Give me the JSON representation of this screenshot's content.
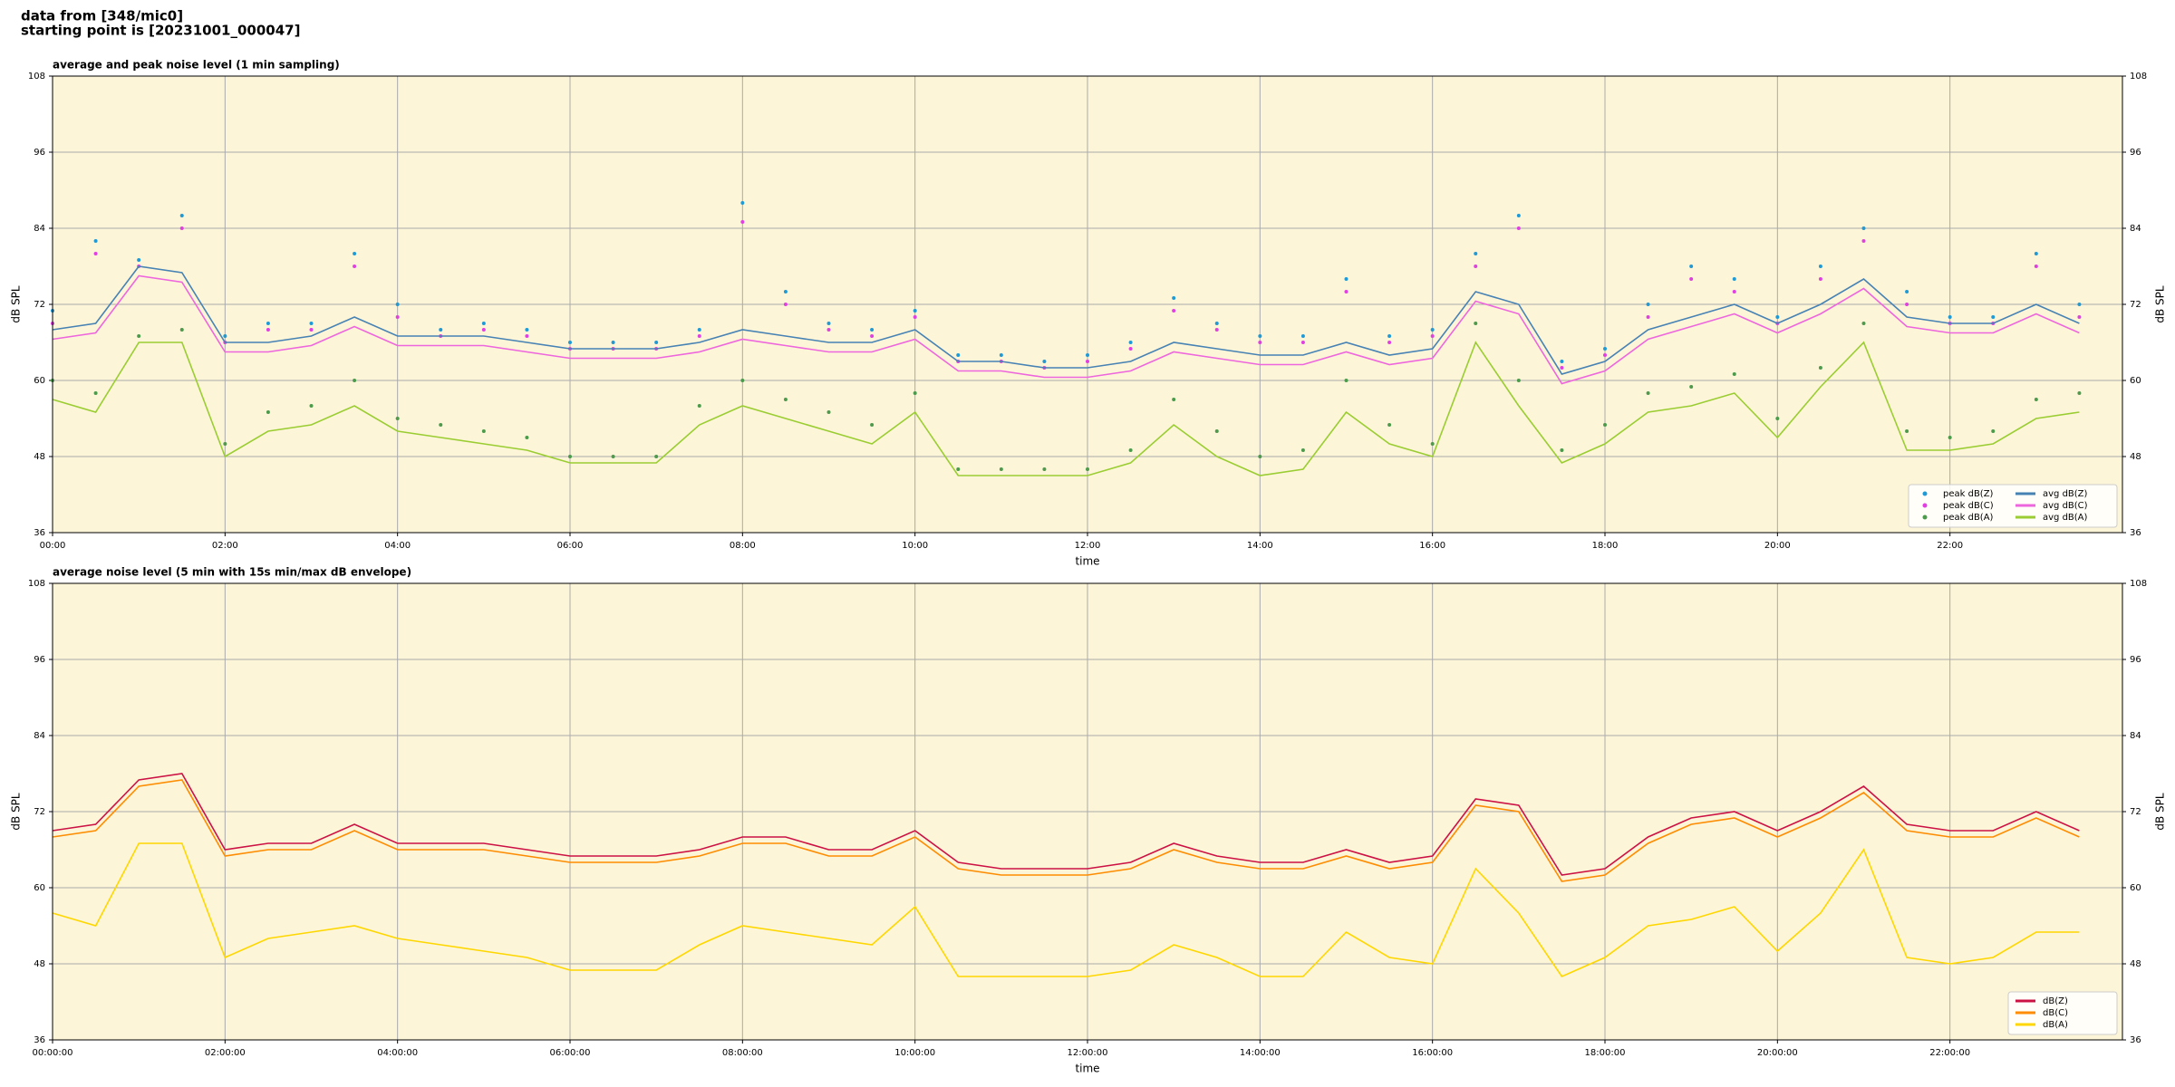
{
  "header": {
    "line1": "data from [348/mic0]",
    "line2": "starting point is [20231001_000047]"
  },
  "chart_data": [
    {
      "type": "line",
      "title": "average and peak noise level (1 min sampling)",
      "x_label": "time",
      "y_label": "dB SPL",
      "x": [
        0,
        0.5,
        1,
        1.5,
        2,
        2.5,
        3,
        3.5,
        4,
        4.5,
        5,
        5.5,
        6,
        6.5,
        7,
        7.5,
        8,
        8.5,
        9,
        9.5,
        10,
        10.5,
        11,
        11.5,
        12,
        12.5,
        13,
        13.5,
        14,
        14.5,
        15,
        15.5,
        16,
        16.5,
        17,
        17.5,
        18,
        18.5,
        19,
        19.5,
        20,
        20.5,
        21,
        21.5,
        22,
        22.5,
        23,
        23.5
      ],
      "xlim": [
        0,
        24
      ],
      "xticks": [
        {
          "value": 0,
          "label": "00:00"
        },
        {
          "value": 2,
          "label": "02:00"
        },
        {
          "value": 4,
          "label": "04:00"
        },
        {
          "value": 6,
          "label": "06:00"
        },
        {
          "value": 8,
          "label": "08:00"
        },
        {
          "value": 10,
          "label": "10:00"
        },
        {
          "value": 12,
          "label": "12:00"
        },
        {
          "value": 14,
          "label": "14:00"
        },
        {
          "value": 16,
          "label": "16:00"
        },
        {
          "value": 18,
          "label": "18:00"
        },
        {
          "value": 20,
          "label": "20:00"
        },
        {
          "value": 22,
          "label": "22:00"
        }
      ],
      "ylim": [
        36,
        108
      ],
      "yticks": [
        36,
        48,
        60,
        72,
        84,
        96,
        108
      ],
      "grid": true,
      "legend": "lower right",
      "legend_columns": 2,
      "series": [
        {
          "name": "peak dB(Z)",
          "style": "scatter",
          "color": "#1f9ad6",
          "values": [
            71,
            82,
            79,
            86,
            67,
            69,
            69,
            80,
            72,
            68,
            69,
            68,
            66,
            66,
            66,
            68,
            88,
            74,
            69,
            68,
            71,
            64,
            64,
            63,
            64,
            66,
            73,
            69,
            67,
            67,
            76,
            67,
            68,
            80,
            86,
            63,
            65,
            72,
            78,
            76,
            70,
            78,
            84,
            74,
            70,
            70,
            80,
            72
          ]
        },
        {
          "name": "peak dB(C)",
          "style": "scatter",
          "color": "#e040e0",
          "values": [
            69,
            80,
            78,
            84,
            66,
            68,
            68,
            78,
            70,
            67,
            68,
            67,
            65,
            65,
            65,
            67,
            85,
            72,
            68,
            67,
            70,
            63,
            63,
            62,
            63,
            65,
            71,
            68,
            66,
            66,
            74,
            66,
            67,
            78,
            84,
            62,
            64,
            70,
            76,
            74,
            69,
            76,
            82,
            72,
            69,
            69,
            78,
            70
          ]
        },
        {
          "name": "peak dB(A)",
          "style": "scatter",
          "color": "#4c9a4c",
          "values": [
            60,
            58,
            67,
            68,
            50,
            55,
            56,
            60,
            54,
            53,
            52,
            51,
            48,
            48,
            48,
            56,
            60,
            57,
            55,
            53,
            58,
            46,
            46,
            46,
            46,
            49,
            57,
            52,
            48,
            49,
            60,
            53,
            50,
            69,
            60,
            49,
            53,
            58,
            59,
            61,
            54,
            62,
            69,
            52,
            51,
            52,
            57,
            58
          ]
        },
        {
          "name": "avg dB(Z)",
          "style": "line",
          "color": "#4682b4",
          "values": [
            68,
            69,
            78,
            77,
            66,
            66,
            67,
            70,
            67,
            67,
            67,
            66,
            65,
            65,
            65,
            66,
            68,
            67,
            66,
            66,
            68,
            63,
            63,
            62,
            62,
            63,
            66,
            65,
            64,
            64,
            66,
            64,
            65,
            74,
            72,
            61,
            63,
            68,
            70,
            72,
            69,
            72,
            76,
            70,
            69,
            69,
            72,
            69
          ]
        },
        {
          "name": "avg dB(C)",
          "style": "line",
          "color": "#ee66dd",
          "values": [
            66.5,
            67.5,
            76.5,
            75.5,
            64.5,
            64.5,
            65.5,
            68.5,
            65.5,
            65.5,
            65.5,
            64.5,
            63.5,
            63.5,
            63.5,
            64.5,
            66.5,
            65.5,
            64.5,
            64.5,
            66.5,
            61.5,
            61.5,
            60.5,
            60.5,
            61.5,
            64.5,
            63.5,
            62.5,
            62.5,
            64.5,
            62.5,
            63.5,
            72.5,
            70.5,
            59.5,
            61.5,
            66.5,
            68.5,
            70.5,
            67.5,
            70.5,
            74.5,
            68.5,
            67.5,
            67.5,
            70.5,
            67.5
          ]
        },
        {
          "name": "avg dB(A)",
          "style": "line",
          "color": "#9acd32",
          "values": [
            57,
            55,
            66,
            66,
            48,
            52,
            53,
            56,
            52,
            51,
            50,
            49,
            47,
            47,
            47,
            53,
            56,
            54,
            52,
            50,
            55,
            45,
            45,
            45,
            45,
            47,
            53,
            48,
            45,
            46,
            55,
            50,
            48,
            66,
            56,
            47,
            50,
            55,
            56,
            58,
            51,
            59,
            66,
            49,
            49,
            50,
            54,
            55
          ]
        }
      ]
    },
    {
      "type": "line",
      "title": "average noise level (5 min with 15s min/max dB envelope)",
      "x_label": "time",
      "y_label": "dB SPL",
      "x": [
        0,
        0.5,
        1,
        1.5,
        2,
        2.5,
        3,
        3.5,
        4,
        4.5,
        5,
        5.5,
        6,
        6.5,
        7,
        7.5,
        8,
        8.5,
        9,
        9.5,
        10,
        10.5,
        11,
        11.5,
        12,
        12.5,
        13,
        13.5,
        14,
        14.5,
        15,
        15.5,
        16,
        16.5,
        17,
        17.5,
        18,
        18.5,
        19,
        19.5,
        20,
        20.5,
        21,
        21.5,
        22,
        22.5,
        23,
        23.5
      ],
      "xlim": [
        0,
        24
      ],
      "xticks": [
        {
          "value": 0,
          "label": "00:00:00"
        },
        {
          "value": 2,
          "label": "02:00:00"
        },
        {
          "value": 4,
          "label": "04:00:00"
        },
        {
          "value": 6,
          "label": "06:00:00"
        },
        {
          "value": 8,
          "label": "08:00:00"
        },
        {
          "value": 10,
          "label": "10:00:00"
        },
        {
          "value": 12,
          "label": "12:00:00"
        },
        {
          "value": 14,
          "label": "14:00:00"
        },
        {
          "value": 16,
          "label": "16:00:00"
        },
        {
          "value": 18,
          "label": "18:00:00"
        },
        {
          "value": 20,
          "label": "20:00:00"
        },
        {
          "value": 22,
          "label": "22:00:00"
        }
      ],
      "ylim": [
        36,
        108
      ],
      "yticks": [
        36,
        48,
        60,
        72,
        84,
        96,
        108
      ],
      "grid": true,
      "legend": "lower right",
      "legend_columns": 1,
      "series": [
        {
          "name": "dB(Z)",
          "style": "line",
          "color": "#cc1144",
          "values": [
            69,
            70,
            77,
            78,
            66,
            67,
            67,
            70,
            67,
            67,
            67,
            66,
            65,
            65,
            65,
            66,
            68,
            68,
            66,
            66,
            69,
            64,
            63,
            63,
            63,
            64,
            67,
            65,
            64,
            64,
            66,
            64,
            65,
            74,
            73,
            62,
            63,
            68,
            71,
            72,
            69,
            72,
            76,
            70,
            69,
            69,
            72,
            69
          ]
        },
        {
          "name": "dB(C)",
          "style": "line",
          "color": "#ff8c00",
          "values": [
            68,
            69,
            76,
            77,
            65,
            66,
            66,
            69,
            66,
            66,
            66,
            65,
            64,
            64,
            64,
            65,
            67,
            67,
            65,
            65,
            68,
            63,
            62,
            62,
            62,
            63,
            66,
            64,
            63,
            63,
            65,
            63,
            64,
            73,
            72,
            61,
            62,
            67,
            70,
            71,
            68,
            71,
            75,
            69,
            68,
            68,
            71,
            68
          ]
        },
        {
          "name": "dB(A)",
          "style": "line",
          "color": "#ffd700",
          "values": [
            56,
            54,
            67,
            67,
            49,
            52,
            53,
            54,
            52,
            51,
            50,
            49,
            47,
            47,
            47,
            51,
            54,
            53,
            52,
            51,
            57,
            46,
            46,
            46,
            46,
            47,
            51,
            49,
            46,
            46,
            53,
            49,
            48,
            63,
            56,
            46,
            49,
            54,
            55,
            57,
            50,
            56,
            66,
            49,
            48,
            49,
            53,
            53
          ]
        }
      ]
    }
  ]
}
